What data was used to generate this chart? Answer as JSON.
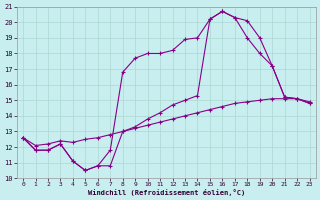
{
  "xlabel": "Windchill (Refroidissement éolien,°C)",
  "bg_color": "#c8eef0",
  "line_color": "#880088",
  "grid_color": "#aad8d0",
  "xlim": [
    -0.5,
    23.5
  ],
  "ylim": [
    10,
    21
  ],
  "yticks": [
    10,
    11,
    12,
    13,
    14,
    15,
    16,
    17,
    18,
    19,
    20,
    21
  ],
  "xticks": [
    0,
    1,
    2,
    3,
    4,
    5,
    6,
    7,
    8,
    9,
    10,
    11,
    12,
    13,
    14,
    15,
    16,
    17,
    18,
    19,
    20,
    21,
    22,
    23
  ],
  "line1_x": [
    0,
    1,
    2,
    3,
    4,
    5,
    6,
    7,
    8,
    9,
    10,
    11,
    12,
    13,
    14,
    15,
    16,
    17,
    18,
    19,
    20,
    21,
    22,
    23
  ],
  "line1_y": [
    12.6,
    11.8,
    11.8,
    12.2,
    11.1,
    10.5,
    10.8,
    10.8,
    13.0,
    13.3,
    13.8,
    14.2,
    14.7,
    15.0,
    15.3,
    20.2,
    20.7,
    20.3,
    20.1,
    19.0,
    17.2,
    15.2,
    15.1,
    14.8
  ],
  "line2_x": [
    0,
    1,
    2,
    3,
    4,
    5,
    6,
    7,
    8,
    9,
    10,
    11,
    12,
    13,
    14,
    15,
    16,
    17,
    18,
    19,
    20,
    21,
    22,
    23
  ],
  "line2_y": [
    12.6,
    11.8,
    11.8,
    12.2,
    11.1,
    10.5,
    10.8,
    11.8,
    16.8,
    17.7,
    18.0,
    18.0,
    18.2,
    18.9,
    19.0,
    20.2,
    20.7,
    20.3,
    19.0,
    18.0,
    17.2,
    15.2,
    15.1,
    14.8
  ],
  "line3_x": [
    0,
    1,
    2,
    3,
    4,
    5,
    6,
    7,
    8,
    9,
    10,
    11,
    12,
    13,
    14,
    15,
    16,
    17,
    18,
    19,
    20,
    21,
    22,
    23
  ],
  "line3_y": [
    12.6,
    12.1,
    12.2,
    12.4,
    12.3,
    12.5,
    12.6,
    12.8,
    13.0,
    13.2,
    13.4,
    13.6,
    13.8,
    14.0,
    14.2,
    14.4,
    14.6,
    14.8,
    14.9,
    15.0,
    15.1,
    15.1,
    15.1,
    14.9
  ]
}
